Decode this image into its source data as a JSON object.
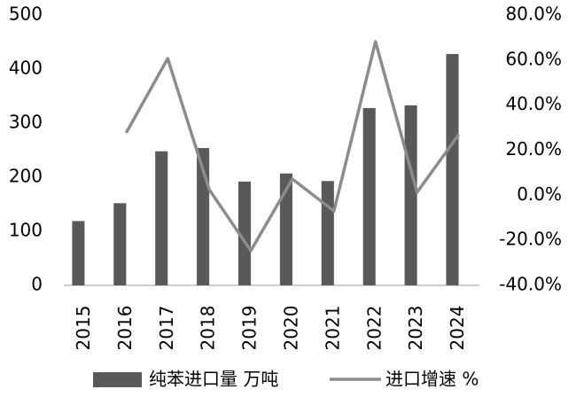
{
  "chart_data": {
    "type": "bar_line",
    "categories": [
      "2015",
      "2016",
      "2017",
      "2018",
      "2019",
      "2020",
      "2021",
      "2022",
      "2023",
      "2024"
    ],
    "series": [
      {
        "name": "纯苯进口量 万吨",
        "type": "bar",
        "color": "#595959",
        "values": [
          119,
          152,
          248,
          254,
          192,
          207,
          193,
          328,
          333,
          428
        ]
      },
      {
        "name": "进口增速 %",
        "type": "line",
        "axis": "y2",
        "color": "#8c8c8c",
        "values": [
          null,
          27.7,
          60.7,
          2.5,
          -24.6,
          7.2,
          -7,
          68.2,
          1.3,
          26.9
        ]
      }
    ],
    "ylim": [
      0,
      500
    ],
    "yticks": [
      0,
      100,
      200,
      300,
      400,
      500
    ],
    "y2lim": [
      -40,
      80
    ],
    "y2ticks": [
      {
        "value": -40,
        "label": "-40.0%"
      },
      {
        "value": -20,
        "label": "-20.0%"
      },
      {
        "value": 0,
        "label": "0.0%"
      },
      {
        "value": 20,
        "label": "20.0%"
      },
      {
        "value": 40,
        "label": "40.0%"
      },
      {
        "value": 60,
        "label": "60.0%"
      },
      {
        "value": 80,
        "label": "80.0%"
      }
    ],
    "grid": false,
    "legend": "bottom"
  }
}
